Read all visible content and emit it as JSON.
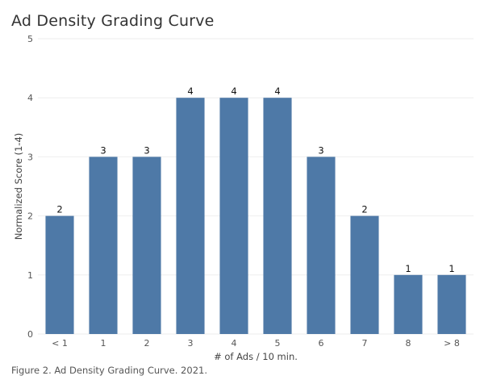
{
  "title": "Ad Density Grading Curve",
  "caption": "Figure 2. Ad Density Grading Curve. 2021.",
  "colors": {
    "bar": "#4e79a7",
    "grid": "#eeeeee",
    "text": "#333333"
  },
  "chart_data": {
    "type": "bar",
    "title": "Ad Density Grading Curve",
    "xlabel": "# of Ads / 10 min.",
    "ylabel": "Normalized Score (1-4)",
    "categories": [
      "< 1",
      "1",
      "2",
      "3",
      "4",
      "5",
      "6",
      "7",
      "8",
      "> 8"
    ],
    "values": [
      2,
      3,
      3,
      4,
      4,
      4,
      3,
      2,
      1,
      1
    ],
    "ylim": [
      0,
      5
    ],
    "yticks": [
      0,
      1,
      2,
      3,
      4,
      5
    ],
    "grid": true,
    "data_labels": true
  }
}
